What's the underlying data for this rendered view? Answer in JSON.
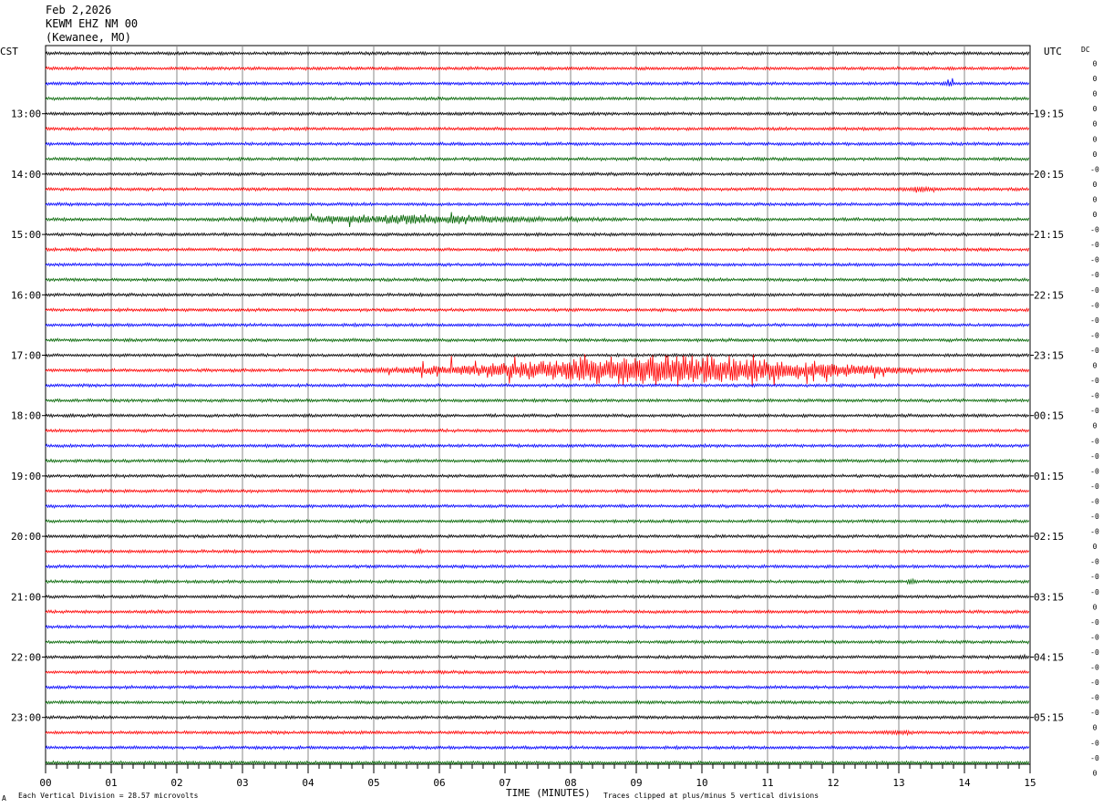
{
  "header": {
    "date": "Feb 2,2026",
    "station": "KEWM EHZ NM 00",
    "location": "(Kewanee, MO)"
  },
  "labels": {
    "left_zone": "CST",
    "right_zone": "UTC",
    "dc": "DC",
    "footer_left": "Each Vertical Division =   28.57 microvolts",
    "footer_center": "TIME (MINUTES)",
    "footer_right": "Traces clipped at plus/minus 5 vertical divisions",
    "corner_mark": "A"
  },
  "chart_data": {
    "type": "line",
    "title": "",
    "xlabel": "TIME (MINUTES)",
    "xlim": [
      0,
      15
    ],
    "x_ticks": [
      "00",
      "01",
      "02",
      "03",
      "04",
      "05",
      "06",
      "07",
      "08",
      "09",
      "10",
      "11",
      "12",
      "13",
      "14",
      "15"
    ],
    "trace_count": 48,
    "trace_minutes": 15,
    "trace_colors": [
      "#000000",
      "#ff0000",
      "#0000ff",
      "#006400"
    ],
    "left_hour_labels": [
      {
        "trace": 4,
        "label": "13:00"
      },
      {
        "trace": 8,
        "label": "14:00"
      },
      {
        "trace": 12,
        "label": "15:00"
      },
      {
        "trace": 16,
        "label": "16:00"
      },
      {
        "trace": 20,
        "label": "17:00"
      },
      {
        "trace": 24,
        "label": "18:00"
      },
      {
        "trace": 28,
        "label": "19:00"
      },
      {
        "trace": 32,
        "label": "20:00"
      },
      {
        "trace": 36,
        "label": "21:00"
      },
      {
        "trace": 40,
        "label": "22:00"
      },
      {
        "trace": 44,
        "label": "23:00"
      }
    ],
    "right_hour_labels": [
      {
        "trace": 4,
        "label": "19:15"
      },
      {
        "trace": 8,
        "label": "20:15"
      },
      {
        "trace": 12,
        "label": "21:15"
      },
      {
        "trace": 16,
        "label": "22:15"
      },
      {
        "trace": 20,
        "label": "23:15"
      },
      {
        "trace": 24,
        "label": "00:15"
      },
      {
        "trace": 28,
        "label": "01:15"
      },
      {
        "trace": 32,
        "label": "02:15"
      },
      {
        "trace": 36,
        "label": "03:15"
      },
      {
        "trace": 40,
        "label": "04:15"
      },
      {
        "trace": 44,
        "label": "05:15"
      }
    ],
    "dc_offsets": [
      "0",
      "0",
      "0",
      "0",
      "0",
      "0",
      "0",
      "-0",
      "0",
      "0",
      "0",
      "-0",
      "-0",
      "-0",
      "-0",
      "-0",
      "-0",
      "-0",
      "-0",
      "-0",
      "0",
      "-0",
      "-0",
      "-0",
      "0",
      "-0",
      "-0",
      "-0",
      "-0",
      "-0",
      "-0",
      "-0",
      "0",
      "-0",
      "-0",
      "-0",
      "0",
      "-0",
      "-0",
      "-0",
      "-0",
      "-0",
      "-0",
      "-0",
      "0",
      "-0",
      "-0",
      "0"
    ],
    "events": [
      {
        "trace": 11,
        "start_min": 2.2,
        "peak_min": 5.5,
        "end_min": 9.0,
        "amplitude": 1.2
      },
      {
        "trace": 21,
        "start_min": 4.5,
        "peak_min": 9.5,
        "end_min": 14.0,
        "amplitude": 5.0
      },
      {
        "trace": 2,
        "start_min": 13.6,
        "peak_min": 13.8,
        "end_min": 13.9,
        "amplitude": 0.5
      },
      {
        "trace": 9,
        "start_min": 12.8,
        "peak_min": 13.3,
        "end_min": 13.7,
        "amplitude": 0.4
      },
      {
        "trace": 33,
        "start_min": 5.6,
        "peak_min": 5.7,
        "end_min": 5.8,
        "amplitude": 0.4
      },
      {
        "trace": 35,
        "start_min": 13.1,
        "peak_min": 13.2,
        "end_min": 13.3,
        "amplitude": 0.6
      },
      {
        "trace": 45,
        "start_min": 12.6,
        "peak_min": 13.0,
        "end_min": 13.3,
        "amplitude": 0.4
      },
      {
        "trace": 38,
        "start_min": 14.7,
        "peak_min": 14.8,
        "end_min": 14.9,
        "amplitude": 0.3
      },
      {
        "trace": 40,
        "start_min": 14.6,
        "peak_min": 14.9,
        "end_min": 15.0,
        "amplitude": 0.4
      }
    ]
  }
}
